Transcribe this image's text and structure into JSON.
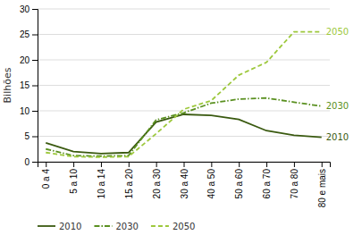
{
  "chart_data": {
    "type": "line",
    "ylabel": "Bilhões",
    "categories": [
      "0 a 4",
      "5 a 10",
      "10 a 14",
      "15 a 20",
      "20 a 30",
      "30 a 40",
      "40 a 50",
      "50 a 60",
      "60 a 70",
      "70 a 80",
      "80 e mais"
    ],
    "series": [
      {
        "name": "2010",
        "color": "#3a5a10",
        "line_style": "solid",
        "values": [
          3.7,
          2.0,
          1.6,
          1.8,
          7.8,
          9.3,
          9.1,
          8.3,
          6.1,
          5.2,
          4.8
        ]
      },
      {
        "name": "2030",
        "color": "#5a9020",
        "line_style": "dashdot",
        "values": [
          2.5,
          1.2,
          1.1,
          1.2,
          8.2,
          9.6,
          11.5,
          12.3,
          12.5,
          11.7,
          10.9
        ]
      },
      {
        "name": "2050",
        "color": "#9dc83c",
        "line_style": "dashed",
        "values": [
          1.8,
          1.0,
          0.9,
          1.0,
          5.5,
          10.3,
          12.0,
          17.0,
          19.5,
          25.5,
          25.5
        ]
      }
    ],
    "ylim": [
      0,
      30
    ],
    "yticks": [
      0,
      5,
      10,
      15,
      20,
      25,
      30
    ],
    "grid": true,
    "legend": "bottom"
  }
}
